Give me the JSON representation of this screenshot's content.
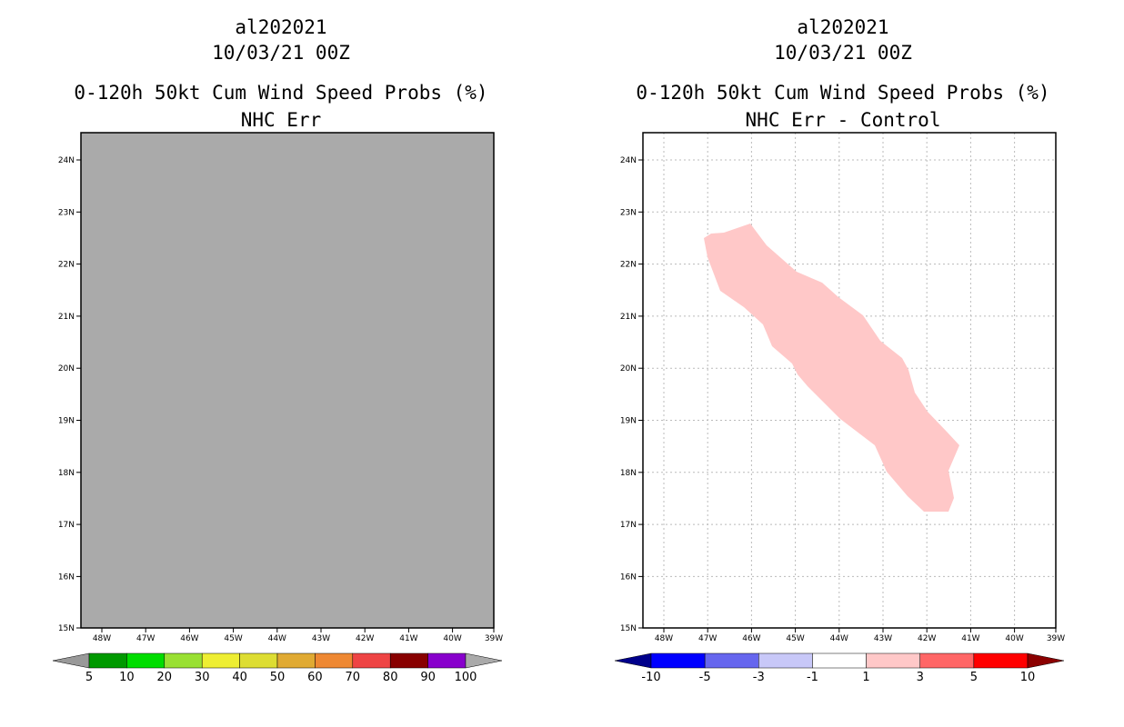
{
  "colors": {
    "land_gray": "#aaaaaa",
    "diff_pink": "#ffc8c8",
    "grid": "#bbbbbb",
    "frame": "#000000"
  },
  "axes": {
    "lat_labels": [
      "24N",
      "23N",
      "22N",
      "21N",
      "20N",
      "19N",
      "18N",
      "17N",
      "16N",
      "15N"
    ],
    "lon_labels": [
      "48W",
      "47W",
      "46W",
      "45W",
      "44W",
      "43W",
      "42W",
      "41W",
      "40W",
      "39W"
    ]
  },
  "left_panel": {
    "storm_id": "al202021",
    "datetime": "10/03/21 00Z",
    "product": "0-120h 50kt Cum Wind Speed Probs (%)",
    "subtitle": "NHC Err",
    "colorbar": {
      "labels": [
        "5",
        "10",
        "20",
        "30",
        "40",
        "50",
        "60",
        "70",
        "80",
        "90",
        "100"
      ],
      "colors": [
        "#999999",
        "#009900",
        "#00dd00",
        "#99e033",
        "#eeee33",
        "#dddd33",
        "#e0aa33",
        "#ee8833",
        "#ee4444",
        "#880000",
        "#8800cc",
        "#aaaaaa"
      ]
    }
  },
  "right_panel": {
    "storm_id": "al202021",
    "datetime": "10/03/21 00Z",
    "product": "0-120h 50kt Cum Wind Speed Probs (%)",
    "subtitle": "NHC Err - Control",
    "colorbar": {
      "labels": [
        "-10",
        "-5",
        "-3",
        "-1",
        "1",
        "3",
        "5",
        "10"
      ],
      "colors": [
        "#00008b",
        "#0000ff",
        "#6666ee",
        "#c8c8f8",
        "#ffffff",
        "#ffc8c8",
        "#ff6666",
        "#ff0000",
        "#8b0000"
      ]
    },
    "region_fill_label": "1 to 3"
  }
}
